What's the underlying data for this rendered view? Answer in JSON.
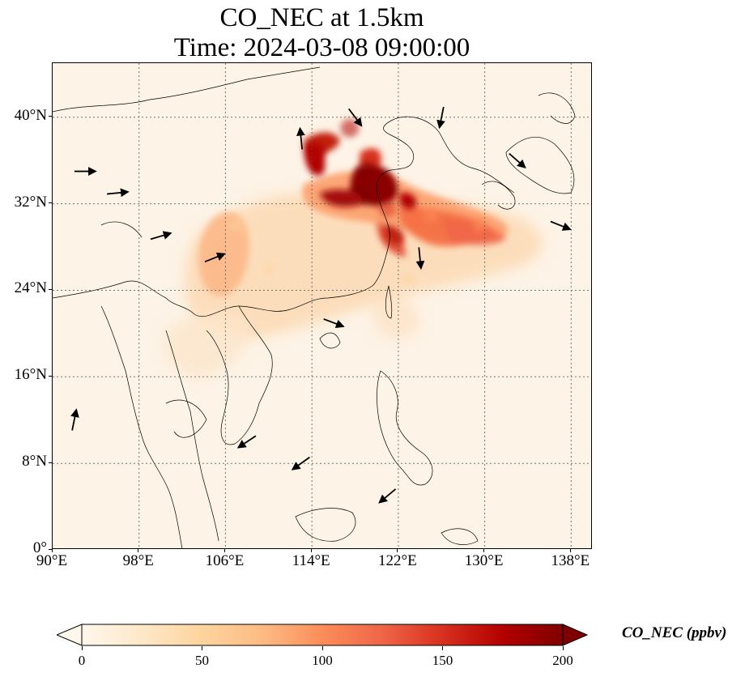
{
  "title": {
    "line1": "CO_NEC at 1.5km",
    "line2": "Time: 2024-03-08 09:00:00"
  },
  "map": {
    "projection": "PlateCarree",
    "lon_range": [
      90,
      140
    ],
    "lat_range": [
      0,
      45
    ],
    "gridlines": "dotted",
    "coastlines": true,
    "borders": true,
    "wind_vectors": true,
    "lat_ticks": [
      {
        "value": 0,
        "label": "0°"
      },
      {
        "value": 8,
        "label": "8°N"
      },
      {
        "value": 16,
        "label": "16°N"
      },
      {
        "value": 24,
        "label": "24°N"
      },
      {
        "value": 32,
        "label": "32°N"
      },
      {
        "value": 40,
        "label": "40°N"
      }
    ],
    "lon_ticks": [
      {
        "value": 90,
        "label": "90°E"
      },
      {
        "value": 98,
        "label": "98°E"
      },
      {
        "value": 106,
        "label": "106°E"
      },
      {
        "value": 114,
        "label": "114°E"
      },
      {
        "value": 122,
        "label": "122°E"
      },
      {
        "value": 130,
        "label": "130°E"
      },
      {
        "value": 138,
        "label": "138°E"
      }
    ]
  },
  "colorbar": {
    "label": "CO_NEC (ppbv)",
    "colormap": "OrRd",
    "range": [
      0,
      200
    ],
    "extend": "both",
    "ticks": [
      {
        "value": 0,
        "label": "0"
      },
      {
        "value": 50,
        "label": "50"
      },
      {
        "value": 100,
        "label": "100"
      },
      {
        "value": 150,
        "label": "150"
      },
      {
        "value": 200,
        "label": "200"
      }
    ],
    "colors": [
      "#fff7ec",
      "#fee8c8",
      "#fdd49e",
      "#fdbb84",
      "#fc8d59",
      "#ef6548",
      "#d7301f",
      "#b30000",
      "#7f0000"
    ]
  },
  "chart_data": {
    "type": "heatmap",
    "variable": "CO_NEC",
    "units": "ppbv",
    "plumes": [
      {
        "lon": 119.0,
        "lat": 35.0,
        "value": 200
      },
      {
        "lon": 117.5,
        "lat": 39.0,
        "value": 180
      },
      {
        "lon": 114.5,
        "lat": 37.0,
        "value": 170
      },
      {
        "lon": 121.0,
        "lat": 31.5,
        "value": 150
      },
      {
        "lon": 125.0,
        "lat": 31.0,
        "value": 110
      },
      {
        "lon": 129.5,
        "lat": 30.0,
        "value": 95
      },
      {
        "lon": 107.0,
        "lat": 30.0,
        "value": 60
      },
      {
        "lon": 110.0,
        "lat": 26.0,
        "value": 45
      },
      {
        "lon": 104.0,
        "lat": 20.0,
        "value": 25
      },
      {
        "lon": 123.0,
        "lat": 25.0,
        "value": 40
      }
    ],
    "wind_vectors": [
      {
        "lon": 93,
        "lat": 35,
        "u": 1.0,
        "v": 0.0
      },
      {
        "lon": 96,
        "lat": 33,
        "u": 1.0,
        "v": 0.1
      },
      {
        "lon": 100,
        "lat": 29,
        "u": 1.0,
        "v": 0.3
      },
      {
        "lon": 105,
        "lat": 27,
        "u": 1.0,
        "v": 0.4
      },
      {
        "lon": 113,
        "lat": 38,
        "u": -0.1,
        "v": 1.0
      },
      {
        "lon": 118,
        "lat": 40,
        "u": 0.6,
        "v": -0.8
      },
      {
        "lon": 126,
        "lat": 40,
        "u": -0.2,
        "v": -1.0
      },
      {
        "lon": 133,
        "lat": 36,
        "u": 0.8,
        "v": -0.7
      },
      {
        "lon": 137,
        "lat": 30,
        "u": 1.0,
        "v": -0.4
      },
      {
        "lon": 124,
        "lat": 27,
        "u": 0.1,
        "v": -1.0
      },
      {
        "lon": 116,
        "lat": 21,
        "u": 0.8,
        "v": -0.3
      },
      {
        "lon": 108,
        "lat": 10,
        "u": -0.6,
        "v": -0.4
      },
      {
        "lon": 113,
        "lat": 8,
        "u": -0.7,
        "v": -0.5
      },
      {
        "lon": 121,
        "lat": 5,
        "u": -0.6,
        "v": -0.5
      },
      {
        "lon": 92,
        "lat": 12,
        "u": 0.2,
        "v": 1.0
      }
    ]
  }
}
